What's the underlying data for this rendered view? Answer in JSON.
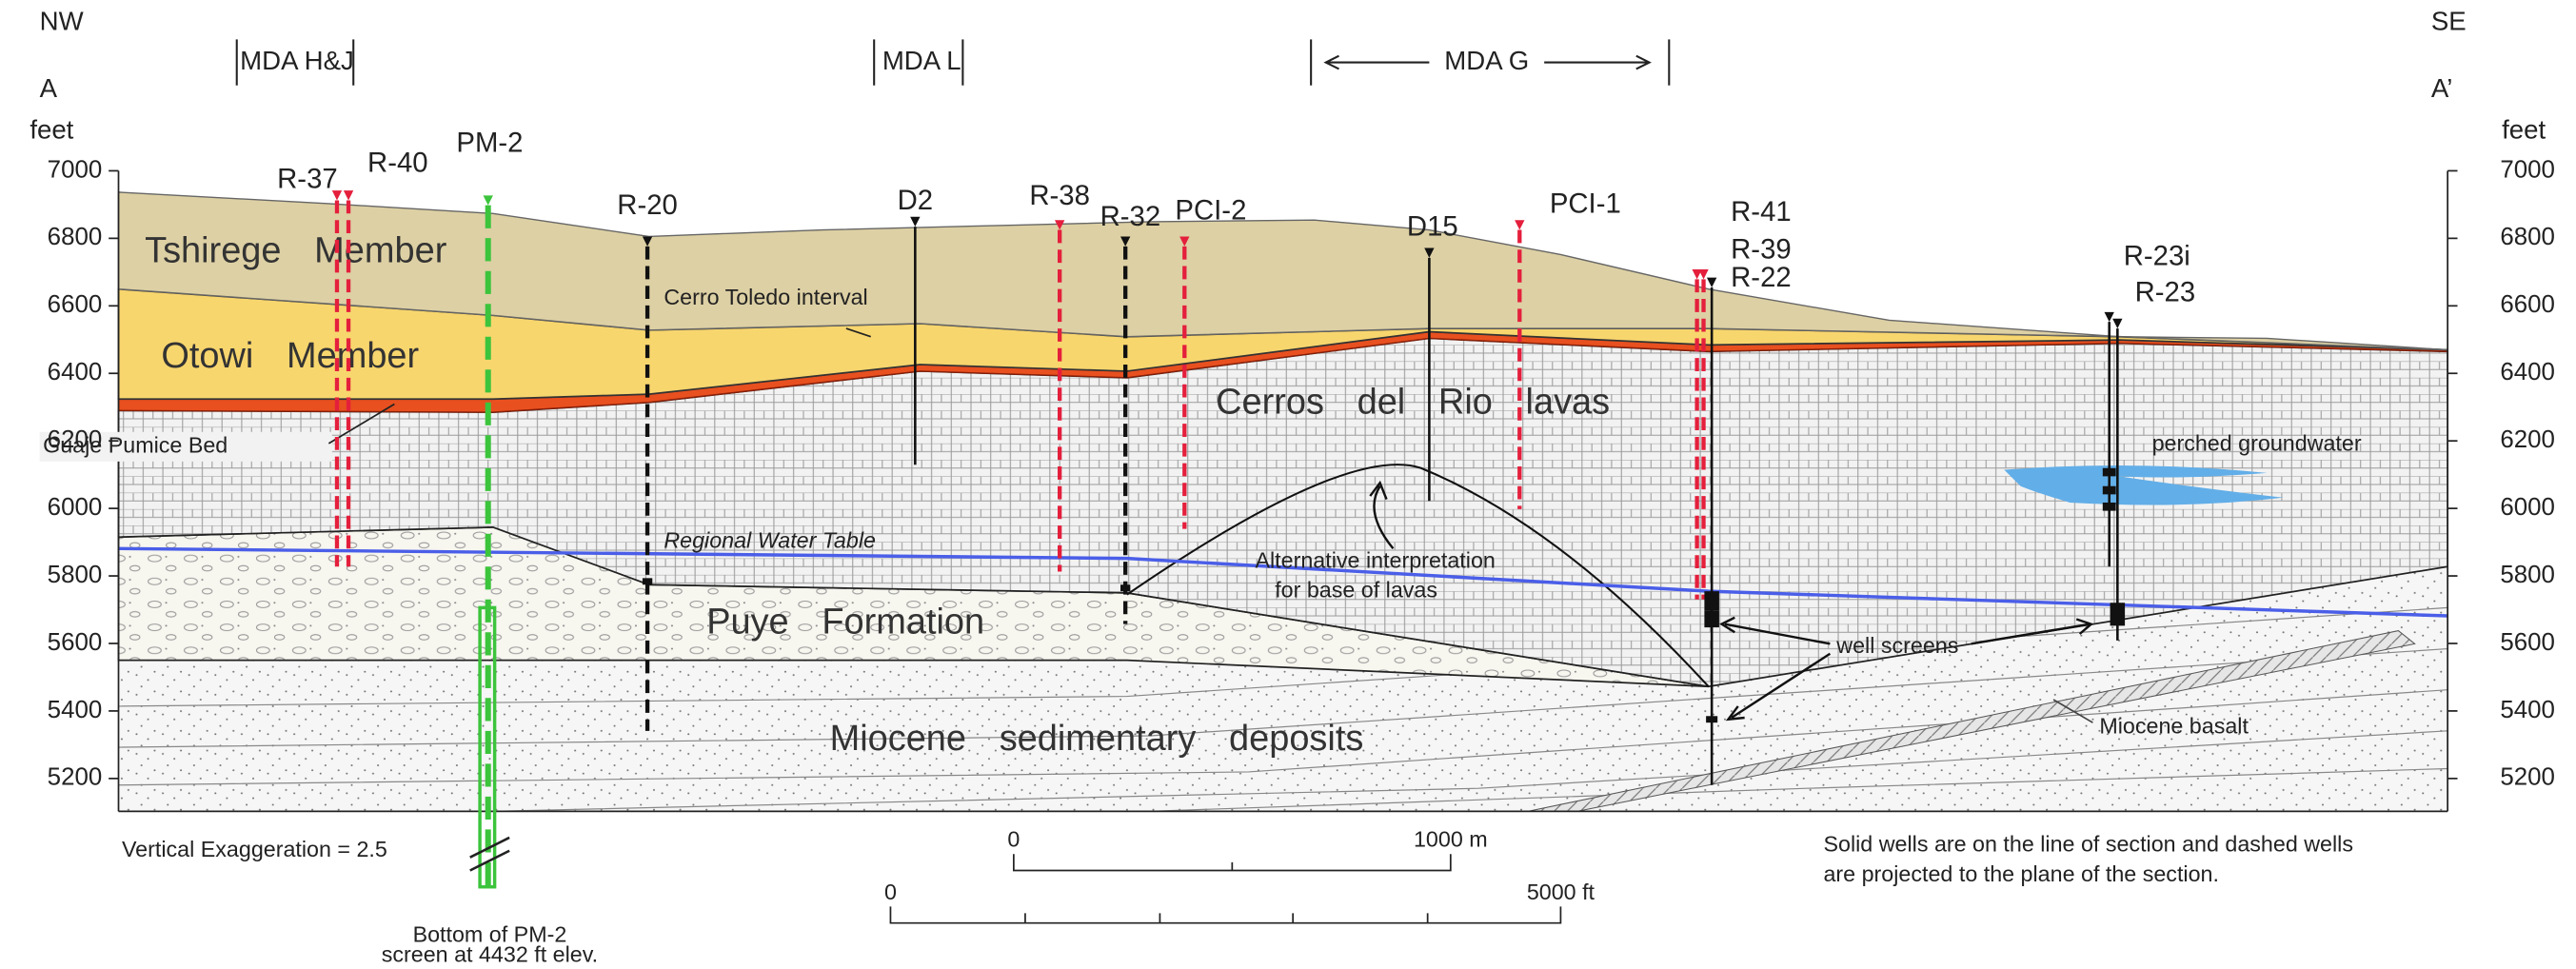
{
  "header": {
    "left_direction": "NW",
    "right_direction": "SE",
    "left_section": "A",
    "right_section": "A’"
  },
  "axis": {
    "left_unit": "feet",
    "right_unit": "feet",
    "ticks": [
      5200,
      5400,
      5600,
      5800,
      6000,
      6200,
      6400,
      6600,
      6800,
      7000
    ]
  },
  "areas": [
    {
      "label": "MDA H&J"
    },
    {
      "label": "MDA L"
    },
    {
      "label": "MDA G"
    }
  ],
  "wells": [
    {
      "label": "R-37",
      "color": "#e41f3c"
    },
    {
      "label": "R-40",
      "color": "#e41f3c"
    },
    {
      "label": "PM-2",
      "color": "#3cc43c"
    },
    {
      "label": "R-20",
      "color": "#111111"
    },
    {
      "label": "D2",
      "color": "#111111"
    },
    {
      "label": "R-38",
      "color": "#e41f3c"
    },
    {
      "label": "R-32",
      "color": "#111111"
    },
    {
      "label": "PCI-2",
      "color": "#e41f3c"
    },
    {
      "label": "D15",
      "color": "#111111"
    },
    {
      "label": "PCI-1",
      "color": "#e41f3c"
    },
    {
      "label": "R-41",
      "color": "#e41f3c"
    },
    {
      "label": "R-39",
      "color": "#e41f3c"
    },
    {
      "label": "R-22",
      "color": "#111111"
    },
    {
      "label": "R-23i",
      "color": "#111111"
    },
    {
      "label": "R-23",
      "color": "#111111"
    }
  ],
  "units": {
    "tshirege": "Tshirege Member",
    "otowi": "Otowi Member",
    "cerro_toledo": "Cerro Toledo interval",
    "guaje": "Guaje Pumice Bed",
    "cerros_del_rio": "Cerros del Rio lavas",
    "puye": "Puye Formation",
    "miocene_sed": "Miocene sedimentary deposits",
    "miocene_basalt": "Miocene basalt"
  },
  "annotations": {
    "perched": "perched groundwater",
    "water_table": "Regional Water Table",
    "alternative": [
      "Alternative interpretation",
      "for base of lavas"
    ],
    "well_screens": "well screens",
    "exaggeration": "Vertical Exaggeration = 2.5",
    "pm2_bottom": [
      "Bottom of PM-2",
      "screen at 4432 ft elev."
    ],
    "note": [
      "Solid wells are on the line of section and dashed wells",
      "are projected to the plane of the section."
    ]
  },
  "scale_bars": {
    "metric_start": "0",
    "metric_end": "1000 m",
    "feet_start": "0",
    "feet_end": "5000 ft"
  }
}
